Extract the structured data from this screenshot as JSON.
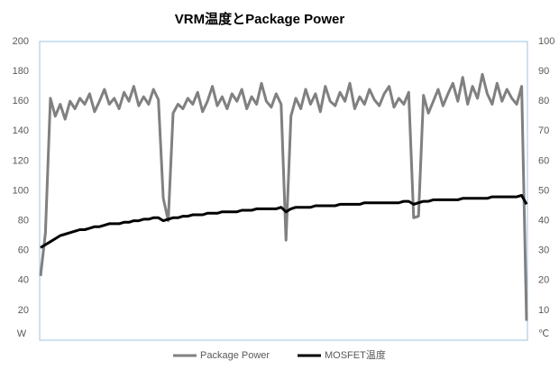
{
  "chart_data": {
    "type": "line",
    "title": "VRM温度とPackage Power",
    "y_label": "W",
    "y2_label": "℃",
    "ylim": [
      0,
      200
    ],
    "yticks": [
      20,
      40,
      60,
      80,
      100,
      120,
      140,
      160,
      180,
      200
    ],
    "y2lim": [
      0,
      100
    ],
    "y2ticks": [
      10,
      20,
      30,
      40,
      50,
      60,
      70,
      80,
      90,
      100
    ],
    "grid": false,
    "legend": "bottom",
    "series": [
      {
        "name": "Package Power",
        "color": "#808080",
        "values": [
          43,
          72,
          162,
          150,
          158,
          148,
          160,
          155,
          162,
          158,
          165,
          153,
          160,
          168,
          158,
          162,
          155,
          166,
          160,
          170,
          157,
          163,
          158,
          168,
          161,
          95,
          80,
          152,
          158,
          155,
          162,
          158,
          166,
          153,
          160,
          170,
          157,
          163,
          155,
          165,
          160,
          168,
          155,
          163,
          158,
          172,
          160,
          156,
          165,
          158,
          67,
          150,
          162,
          155,
          168,
          158,
          165,
          153,
          170,
          160,
          157,
          166,
          160,
          172,
          155,
          163,
          158,
          168,
          161,
          157,
          165,
          170,
          156,
          162,
          158,
          166,
          82,
          83,
          164,
          152,
          160,
          168,
          157,
          165,
          172,
          160,
          176,
          158,
          170,
          162,
          178,
          165,
          158,
          172,
          160,
          168,
          162,
          158,
          170,
          13
        ]
      },
      {
        "name": "MOSFET温度",
        "color": "#000000",
        "axis": "y2",
        "values": [
          31,
          32,
          33,
          34,
          35,
          35.5,
          36,
          36.5,
          37,
          37,
          37.5,
          38,
          38,
          38.5,
          39,
          39,
          39,
          39.5,
          39.5,
          40,
          40,
          40.5,
          40.5,
          41,
          41,
          40,
          40.5,
          41,
          41,
          41.5,
          41.5,
          42,
          42,
          42,
          42.5,
          42.5,
          42.5,
          43,
          43,
          43,
          43,
          43.5,
          43.5,
          43.5,
          44,
          44,
          44,
          44,
          44,
          44.5,
          43,
          44,
          44.5,
          44.5,
          44.5,
          44.5,
          45,
          45,
          45,
          45,
          45,
          45.5,
          45.5,
          45.5,
          45.5,
          45.5,
          46,
          46,
          46,
          46,
          46,
          46,
          46,
          46,
          46.5,
          46.5,
          45.5,
          46,
          46.5,
          46.5,
          47,
          47,
          47,
          47,
          47,
          47,
          47.5,
          47.5,
          47.5,
          47.5,
          47.5,
          47.5,
          48,
          48,
          48,
          48,
          48,
          48,
          48.5,
          45.5
        ]
      }
    ]
  }
}
